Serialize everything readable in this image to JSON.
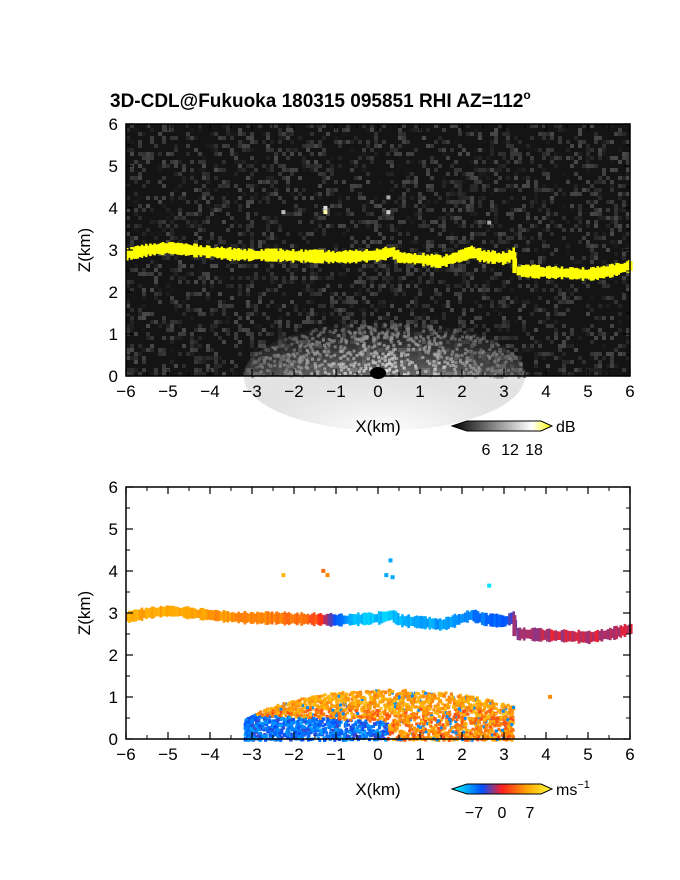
{
  "title": "3D-CDL@Fukuoka 180315 095851 RHI AZ=112",
  "title_sup": "o",
  "chart_data": [
    {
      "type": "heatmap",
      "name": "reflectivity",
      "xlabel": "X(km)",
      "ylabel": "Z(km)",
      "xlim": [
        -6,
        6
      ],
      "ylim": [
        0,
        6
      ],
      "xticks": [
        "-6",
        "-5",
        "-4",
        "-3",
        "-2",
        "-1",
        "0",
        "1",
        "2",
        "3",
        "4",
        "5",
        "6"
      ],
      "yticks": [
        "0",
        "1",
        "2",
        "3",
        "4",
        "5",
        "6"
      ],
      "background_color": "#141414",
      "colorbar": {
        "unit": "dB",
        "ticks": [
          "6",
          "12",
          "18"
        ],
        "tick_values": [
          6,
          12,
          18
        ],
        "range": [
          0,
          20
        ],
        "colors": [
          "#000000",
          "#ffffff",
          "#ffff00"
        ]
      },
      "features": [
        {
          "label": "cloud-layer",
          "value": 19,
          "color": "#ffff00",
          "profile_x": [
            -6,
            -5.5,
            -5,
            -4.5,
            -4,
            -3.5,
            -3,
            -2.5,
            -2,
            -1.5,
            -1,
            -0.5,
            0,
            0.3,
            0.5,
            1,
            1.5,
            2,
            2.2,
            2.5,
            3,
            3.2,
            3.3,
            3.5,
            4,
            4.5,
            5,
            5.5,
            6
          ],
          "profile_z": [
            2.9,
            3.0,
            3.05,
            3.0,
            2.95,
            2.9,
            2.88,
            2.88,
            2.86,
            2.85,
            2.83,
            2.85,
            2.88,
            2.95,
            2.82,
            2.78,
            2.72,
            2.88,
            2.95,
            2.85,
            2.8,
            2.9,
            2.5,
            2.5,
            2.47,
            2.45,
            2.42,
            2.5,
            2.62
          ]
        },
        {
          "label": "low-level-echo",
          "x_range": [
            -3.2,
            3.5
          ],
          "z_top": 1.3,
          "value": 14
        }
      ]
    },
    {
      "type": "heatmap",
      "name": "doppler-velocity",
      "xlabel": "X(km)",
      "ylabel": "Z(km)",
      "xlim": [
        -6,
        6
      ],
      "ylim": [
        0,
        6
      ],
      "xticks": [
        "-6",
        "-5",
        "-4",
        "-3",
        "-2",
        "-1",
        "0",
        "1",
        "2",
        "3",
        "4",
        "5",
        "6"
      ],
      "yticks": [
        "0",
        "1",
        "2",
        "3",
        "4",
        "5",
        "6"
      ],
      "colorbar": {
        "unit": "ms",
        "unit_sup": "−1",
        "ticks": [
          "−7",
          "0",
          "7"
        ],
        "tick_values": [
          -7,
          0,
          7
        ],
        "range": [
          -10,
          10
        ],
        "colors": [
          "#00ffff",
          "#0050ff",
          "#ff2020",
          "#ffa500",
          "#ffff40"
        ]
      },
      "features": [
        {
          "label": "cloud-layer-velocity",
          "x": [
            -6,
            -5,
            -4,
            -3,
            -2,
            -1.5,
            -1,
            -0.5,
            0,
            1,
            2,
            2.5,
            3,
            3.3,
            3.5,
            4,
            5,
            6
          ],
          "velocity": [
            5.5,
            5,
            4.5,
            4,
            3,
            2,
            -5,
            -8,
            -8,
            -7,
            -6,
            -5,
            -4,
            -2,
            -1.5,
            -1,
            -1,
            -1
          ]
        },
        {
          "label": "low-level-velocity",
          "x_range": [
            -3.2,
            3.2
          ],
          "z_top": 1.2,
          "lower_left_velocity": -5,
          "upper_velocity": 5,
          "centre_velocity": 4
        }
      ]
    }
  ]
}
